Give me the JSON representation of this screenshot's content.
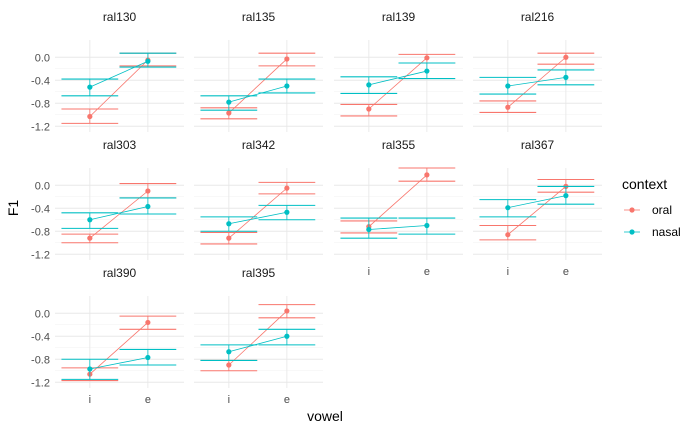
{
  "chart_data": {
    "type": "line",
    "facet_by": "speaker",
    "facet_columns": 4,
    "x_categories": [
      "i",
      "e"
    ],
    "xlabel": "vowel",
    "ylabel": "F1",
    "ylim": [
      -1.3,
      0.3
    ],
    "y_ticks": [
      {
        "value": 0.0,
        "label": "0.0"
      },
      {
        "value": -0.4,
        "label": "-0.4"
      },
      {
        "value": -0.8,
        "label": "-0.8"
      },
      {
        "value": -1.2,
        "label": "-1.2"
      }
    ],
    "grid": true,
    "legend": {
      "title": "context",
      "position": "right",
      "entries": [
        {
          "key": "oral",
          "label": "oral",
          "color": "#F8766D"
        },
        {
          "key": "nasal",
          "label": "nasal",
          "color": "#00BFC4"
        }
      ]
    },
    "panels": [
      {
        "name": "ral130",
        "oral": {
          "i": [
            -1.03,
            -0.9,
            -1.15
          ],
          "e": [
            -0.05,
            0.07,
            -0.15
          ]
        },
        "nasal": {
          "i": [
            -0.52,
            -0.38,
            -0.67
          ],
          "e": [
            -0.07,
            0.07,
            -0.17
          ]
        }
      },
      {
        "name": "ral135",
        "oral": {
          "i": [
            -0.97,
            -0.88,
            -1.07
          ],
          "e": [
            -0.03,
            0.07,
            -0.15
          ]
        },
        "nasal": {
          "i": [
            -0.78,
            -0.67,
            -0.92
          ],
          "e": [
            -0.5,
            -0.38,
            -0.62
          ]
        }
      },
      {
        "name": "ral139",
        "oral": {
          "i": [
            -0.9,
            -0.82,
            -1.02
          ],
          "e": [
            -0.01,
            0.05,
            -0.1
          ]
        },
        "nasal": {
          "i": [
            -0.48,
            -0.34,
            -0.63
          ],
          "e": [
            -0.24,
            -0.1,
            -0.37
          ]
        }
      },
      {
        "name": "ral216",
        "oral": {
          "i": [
            -0.87,
            -0.76,
            -0.96
          ],
          "e": [
            0.0,
            0.07,
            -0.12
          ]
        },
        "nasal": {
          "i": [
            -0.5,
            -0.35,
            -0.64
          ],
          "e": [
            -0.35,
            -0.22,
            -0.48
          ]
        }
      },
      {
        "name": "ral303",
        "oral": {
          "i": [
            -0.92,
            -0.85,
            -1.0
          ],
          "e": [
            -0.1,
            0.03,
            -0.22
          ]
        },
        "nasal": {
          "i": [
            -0.6,
            -0.48,
            -0.75
          ],
          "e": [
            -0.37,
            -0.22,
            -0.5
          ]
        }
      },
      {
        "name": "ral342",
        "oral": {
          "i": [
            -0.92,
            -0.82,
            -1.02
          ],
          "e": [
            -0.05,
            0.05,
            -0.15
          ]
        },
        "nasal": {
          "i": [
            -0.67,
            -0.55,
            -0.8
          ],
          "e": [
            -0.47,
            -0.35,
            -0.6
          ]
        }
      },
      {
        "name": "ral355",
        "oral": {
          "i": [
            -0.72,
            -0.62,
            -0.83
          ],
          "e": [
            0.18,
            0.3,
            0.07
          ]
        },
        "nasal": {
          "i": [
            -0.77,
            -0.57,
            -0.92
          ],
          "e": [
            -0.7,
            -0.57,
            -0.85
          ]
        }
      },
      {
        "name": "ral367",
        "oral": {
          "i": [
            -0.86,
            -0.7,
            -0.95
          ],
          "e": [
            -0.02,
            0.1,
            -0.12
          ]
        },
        "nasal": {
          "i": [
            -0.39,
            -0.25,
            -0.55
          ],
          "e": [
            -0.18,
            -0.02,
            -0.33
          ]
        }
      },
      {
        "name": "ral390",
        "oral": {
          "i": [
            -1.06,
            -0.95,
            -1.17
          ],
          "e": [
            -0.16,
            -0.05,
            -0.28
          ]
        },
        "nasal": {
          "i": [
            -0.97,
            -0.8,
            -1.15
          ],
          "e": [
            -0.77,
            -0.63,
            -0.9
          ]
        }
      },
      {
        "name": "ral395",
        "oral": {
          "i": [
            -0.9,
            -0.82,
            -1.0
          ],
          "e": [
            0.04,
            0.15,
            -0.08
          ]
        },
        "nasal": {
          "i": [
            -0.67,
            -0.55,
            -0.82
          ],
          "e": [
            -0.4,
            -0.28,
            -0.55
          ]
        }
      }
    ]
  }
}
